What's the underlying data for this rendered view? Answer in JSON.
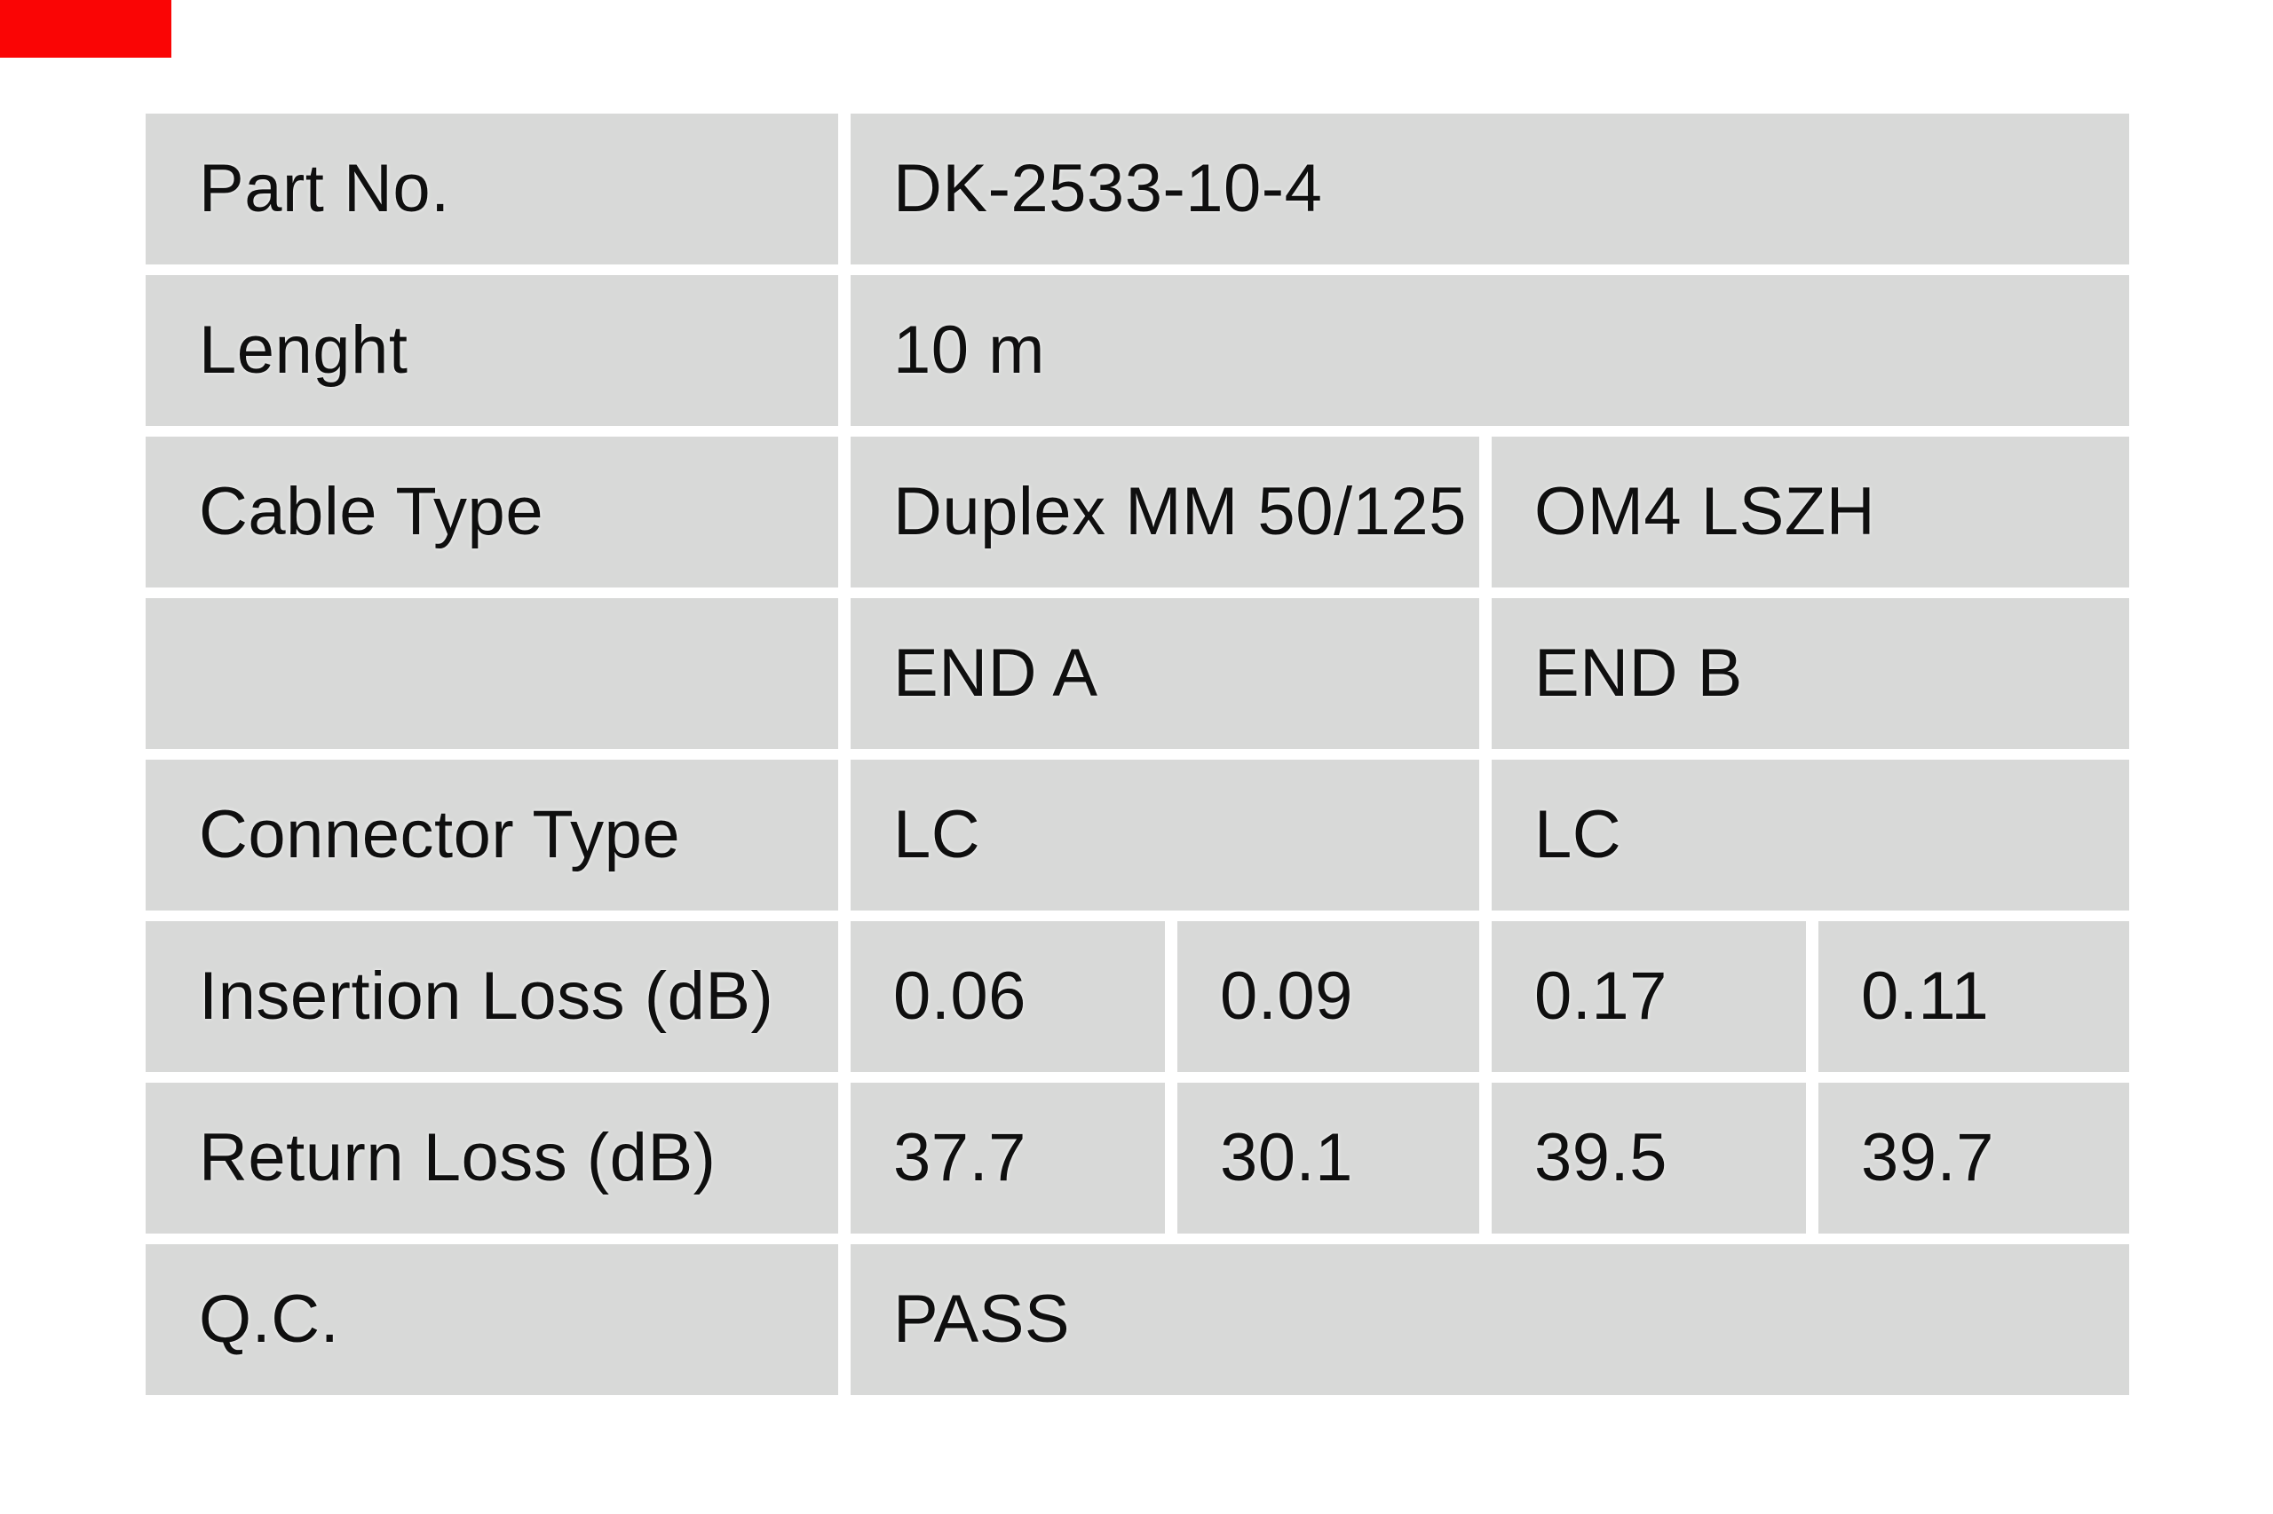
{
  "corner_marker": {
    "color": "#fa0505"
  },
  "table": {
    "background_color": "#d8d9d8",
    "separator_color": "#ffffff",
    "text_color": "#0f0f0f",
    "rows": {
      "part_no": {
        "label": "Part No.",
        "value": "DK-2533-10-4"
      },
      "length": {
        "label": "Lenght",
        "value": "10 m"
      },
      "cable_type": {
        "label": "Cable Type",
        "value_left": "Duplex MM 50/125",
        "value_right": "OM4 LSZH"
      },
      "ends_header": {
        "label": "",
        "end_a": "END A",
        "end_b": "END B"
      },
      "connector_type": {
        "label": "Connector Type",
        "end_a": "LC",
        "end_b": "LC"
      },
      "insertion_loss": {
        "label": "Insertion Loss (dB)",
        "end_a_1": "0.06",
        "end_a_2": "0.09",
        "end_b_1": "0.17",
        "end_b_2": "0.11"
      },
      "return_loss": {
        "label": "Return Loss (dB)",
        "end_a_1": "37.7",
        "end_a_2": "30.1",
        "end_b_1": "39.5",
        "end_b_2": "39.7"
      },
      "qc": {
        "label": "Q.C.",
        "value": "PASS"
      }
    }
  }
}
